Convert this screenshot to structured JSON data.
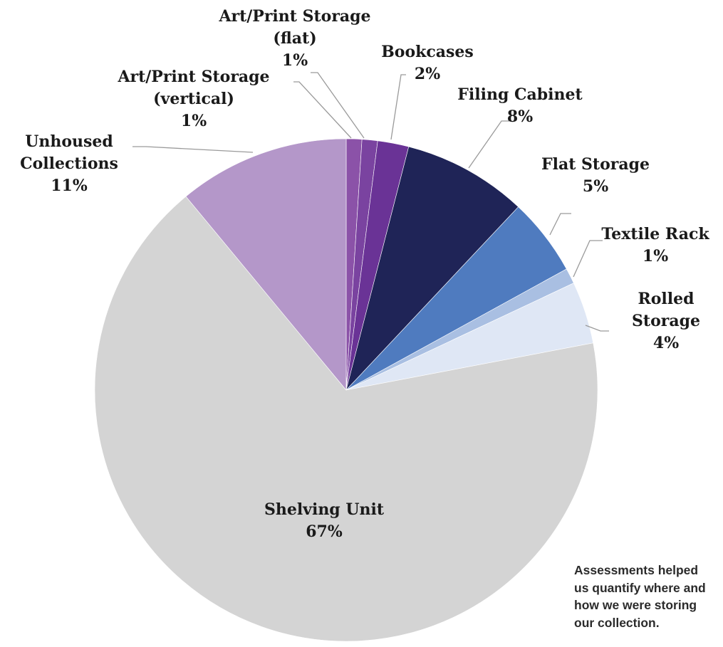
{
  "chart_data": {
    "type": "pie",
    "title": "",
    "slices": [
      {
        "label_lines": [
          "Art/Print Storage",
          "(vertical)"
        ],
        "label": "Art/Print Storage (vertical)",
        "value": 1,
        "value_label": "1%",
        "color": "#8b52a8"
      },
      {
        "label_lines": [
          "Art/Print Storage",
          "(flat)"
        ],
        "label": "Art/Print Storage (flat)",
        "value": 1,
        "value_label": "1%",
        "color": "#7a43a0"
      },
      {
        "label_lines": [
          "Bookcases"
        ],
        "label": "Bookcases",
        "value": 2,
        "value_label": "2%",
        "color": "#6a3396"
      },
      {
        "label_lines": [
          "Filing Cabinet"
        ],
        "label": "Filing Cabinet",
        "value": 8,
        "value_label": "8%",
        "color": "#1f2457"
      },
      {
        "label_lines": [
          "Flat Storage"
        ],
        "label": "Flat Storage",
        "value": 5,
        "value_label": "5%",
        "color": "#4f7bbf"
      },
      {
        "label_lines": [
          "Textile Rack"
        ],
        "label": "Textile Rack",
        "value": 1,
        "value_label": "1%",
        "color": "#a9bfe2"
      },
      {
        "label_lines": [
          "Rolled",
          "Storage"
        ],
        "label": "Rolled Storage",
        "value": 4,
        "value_label": "4%",
        "color": "#dfe7f5"
      },
      {
        "label_lines": [
          "Shelving Unit"
        ],
        "label": "Shelving Unit",
        "value": 67,
        "value_label": "67%",
        "color": "#d4d4d4"
      },
      {
        "label_lines": [
          "Unhoused",
          "Collections"
        ],
        "label": "Unhoused Collections",
        "value": 11,
        "value_label": "11%",
        "color": "#b497c9"
      }
    ]
  },
  "caption": {
    "lines": [
      "Assessments helped",
      "us quantify where and",
      "how we were storing",
      "our collection."
    ]
  }
}
